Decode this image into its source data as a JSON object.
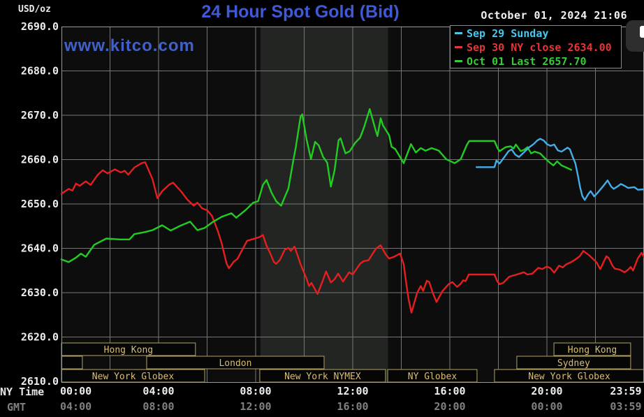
{
  "header": {
    "title": "24 Hour Spot Gold (Bid)",
    "datetime": "October 01, 2024 21:06",
    "unit_label": "USD/oz",
    "watermark": "www.kitco.com"
  },
  "legend": {
    "items": [
      {
        "label": "Sep 29 Sunday",
        "color": "#45c8f0"
      },
      {
        "label": "Sep 30 NY close 2634.00",
        "color": "#e53535"
      },
      {
        "label": "Oct 01 Last 2657.70",
        "color": "#35cc35"
      }
    ]
  },
  "axes": {
    "ny_time_label": "NY Time",
    "gmt_label": "GMT",
    "ny_ticks": [
      "00:00",
      "04:00",
      "08:00",
      "12:00",
      "16:00",
      "20:00",
      "23:59"
    ],
    "gmt_ticks": [
      "04:00",
      "08:00",
      "12:00",
      "16:00",
      "20:00",
      "00:00",
      "03:59"
    ]
  },
  "sessions": [
    {
      "row": 0,
      "label": "Hong Kong",
      "start_h": 0,
      "end_h": 5.52
    },
    {
      "row": 0,
      "label": "Hong Kong",
      "start_h": 20.29,
      "end_h": 23.45
    },
    {
      "row": 1,
      "label": "",
      "start_h": 0,
      "end_h": 0.86
    },
    {
      "row": 1,
      "label": "London",
      "start_h": 3.51,
      "end_h": 10.82
    },
    {
      "row": 1,
      "label": "Sydney",
      "start_h": 18.76,
      "end_h": 23.45
    },
    {
      "row": 2,
      "label": "New York Globex",
      "start_h": 0,
      "end_h": 5.9
    },
    {
      "row": 2,
      "label": "New York NYMEX",
      "start_h": 8.17,
      "end_h": 13.35
    },
    {
      "row": 2,
      "label": "NY Globex",
      "start_h": 13.44,
      "end_h": 17.12
    },
    {
      "row": 2,
      "label": "New York Globex",
      "start_h": 17.84,
      "end_h": 24
    }
  ],
  "colors": {
    "background": "#000000",
    "plot_bg": "#0d0d0d",
    "nymex_band": "#222522",
    "grid": "#767676",
    "border": "#9a9a9a",
    "session_border": "#b3a25f",
    "session_fill": "#060606",
    "session_text": "#d8bd72",
    "axis_text": "#ececec",
    "gmt_text": "#808080"
  },
  "chart_data": {
    "type": "line",
    "title": "24 Hour Spot Gold (Bid)",
    "xlabel": "NY Time (hours)",
    "ylabel": "USD/oz",
    "x_range": [
      0,
      24
    ],
    "y_range": [
      2610,
      2690
    ],
    "y_tick_step": 10,
    "x_tick_step_hours": 4,
    "grid": true,
    "nymex_band_hours": [
      8.2,
      13.45
    ],
    "legend_position": "top-right",
    "series": [
      {
        "name": "Sep 30 NY close 2634.00",
        "color": "#e51f1f",
        "points": [
          [
            0,
            2652.3
          ],
          [
            0.3,
            2653.4
          ],
          [
            0.45,
            2653.0
          ],
          [
            0.6,
            2654.6
          ],
          [
            0.75,
            2654.1
          ],
          [
            1.0,
            2655.1
          ],
          [
            1.2,
            2654.3
          ],
          [
            1.5,
            2656.6
          ],
          [
            1.7,
            2657.6
          ],
          [
            1.9,
            2656.9
          ],
          [
            2.2,
            2657.8
          ],
          [
            2.45,
            2657.1
          ],
          [
            2.6,
            2657.5
          ],
          [
            2.75,
            2656.6
          ],
          [
            3.0,
            2658.2
          ],
          [
            3.3,
            2659.2
          ],
          [
            3.45,
            2659.4
          ],
          [
            3.6,
            2657.5
          ],
          [
            3.75,
            2655.6
          ],
          [
            3.95,
            2651.3
          ],
          [
            4.15,
            2652.9
          ],
          [
            4.45,
            2654.4
          ],
          [
            4.6,
            2654.8
          ],
          [
            4.9,
            2653.0
          ],
          [
            5.2,
            2650.9
          ],
          [
            5.45,
            2649.6
          ],
          [
            5.6,
            2650.3
          ],
          [
            5.8,
            2649.0
          ],
          [
            6.0,
            2648.6
          ],
          [
            6.2,
            2647.3
          ],
          [
            6.45,
            2643.8
          ],
          [
            6.6,
            2641.1
          ],
          [
            6.8,
            2636.6
          ],
          [
            6.9,
            2635.5
          ],
          [
            7.1,
            2637.0
          ],
          [
            7.25,
            2637.6
          ],
          [
            7.5,
            2640.2
          ],
          [
            7.65,
            2641.7
          ],
          [
            7.9,
            2642.1
          ],
          [
            8.15,
            2642.5
          ],
          [
            8.3,
            2643.0
          ],
          [
            8.45,
            2640.6
          ],
          [
            8.6,
            2638.9
          ],
          [
            8.75,
            2636.9
          ],
          [
            8.85,
            2636.5
          ],
          [
            9.0,
            2637.4
          ],
          [
            9.2,
            2639.7
          ],
          [
            9.35,
            2640.1
          ],
          [
            9.45,
            2639.4
          ],
          [
            9.6,
            2640.4
          ],
          [
            9.75,
            2638.1
          ],
          [
            9.85,
            2636.4
          ],
          [
            9.95,
            2635.1
          ],
          [
            10.1,
            2633.1
          ],
          [
            10.2,
            2631.5
          ],
          [
            10.3,
            2632.2
          ],
          [
            10.45,
            2630.7
          ],
          [
            10.55,
            2629.7
          ],
          [
            10.75,
            2632.5
          ],
          [
            10.9,
            2634.8
          ],
          [
            11.1,
            2632.3
          ],
          [
            11.25,
            2633.0
          ],
          [
            11.4,
            2634.3
          ],
          [
            11.6,
            2632.5
          ],
          [
            11.85,
            2634.6
          ],
          [
            12.0,
            2634.1
          ],
          [
            12.3,
            2636.5
          ],
          [
            12.45,
            2637.1
          ],
          [
            12.65,
            2637.3
          ],
          [
            12.95,
            2639.9
          ],
          [
            13.15,
            2640.7
          ],
          [
            13.35,
            2638.7
          ],
          [
            13.5,
            2637.7
          ],
          [
            13.7,
            2638.1
          ],
          [
            13.95,
            2638.8
          ],
          [
            14.1,
            2636.4
          ],
          [
            14.2,
            2632.2
          ],
          [
            14.3,
            2628.6
          ],
          [
            14.42,
            2625.5
          ],
          [
            14.65,
            2629.9
          ],
          [
            14.8,
            2631.5
          ],
          [
            14.9,
            2630.4
          ],
          [
            15.05,
            2632.7
          ],
          [
            15.15,
            2632.4
          ],
          [
            15.3,
            2629.9
          ],
          [
            15.45,
            2627.9
          ],
          [
            15.7,
            2630.4
          ],
          [
            15.95,
            2631.9
          ],
          [
            16.1,
            2632.4
          ],
          [
            16.3,
            2631.3
          ],
          [
            16.45,
            2632.0
          ],
          [
            16.55,
            2632.8
          ],
          [
            16.65,
            2632.6
          ],
          [
            16.78,
            2634.1
          ],
          [
            17.84,
            2634.1
          ],
          [
            17.95,
            2632.6
          ],
          [
            18.05,
            2631.9
          ],
          [
            18.2,
            2632.2
          ],
          [
            18.45,
            2633.6
          ],
          [
            18.7,
            2634.0
          ],
          [
            19.05,
            2634.6
          ],
          [
            19.2,
            2634.1
          ],
          [
            19.4,
            2634.3
          ],
          [
            19.65,
            2635.6
          ],
          [
            19.8,
            2635.3
          ],
          [
            20.0,
            2635.9
          ],
          [
            20.15,
            2635.5
          ],
          [
            20.3,
            2634.5
          ],
          [
            20.5,
            2636.1
          ],
          [
            20.65,
            2635.7
          ],
          [
            20.8,
            2636.4
          ],
          [
            21.0,
            2636.9
          ],
          [
            21.15,
            2637.4
          ],
          [
            21.35,
            2638.2
          ],
          [
            21.5,
            2639.4
          ],
          [
            21.75,
            2638.4
          ],
          [
            21.9,
            2637.6
          ],
          [
            22.05,
            2636.8
          ],
          [
            22.2,
            2635.3
          ],
          [
            22.45,
            2638.2
          ],
          [
            22.55,
            2637.8
          ],
          [
            22.7,
            2636.1
          ],
          [
            22.8,
            2635.4
          ],
          [
            23.0,
            2635.2
          ],
          [
            23.2,
            2634.6
          ],
          [
            23.35,
            2635.2
          ],
          [
            23.45,
            2635.8
          ],
          [
            23.55,
            2635.0
          ],
          [
            23.75,
            2637.8
          ],
          [
            23.9,
            2639.0
          ],
          [
            24.0,
            2638.0
          ]
        ]
      },
      {
        "name": "Oct 01 Last 2657.70",
        "color": "#22cc22",
        "points": [
          [
            0,
            2637.5
          ],
          [
            0.3,
            2636.9
          ],
          [
            0.6,
            2637.9
          ],
          [
            0.8,
            2638.8
          ],
          [
            1.0,
            2638.1
          ],
          [
            1.35,
            2640.8
          ],
          [
            1.85,
            2642.2
          ],
          [
            2.4,
            2642.0
          ],
          [
            2.8,
            2642.0
          ],
          [
            3.0,
            2643.2
          ],
          [
            3.4,
            2643.6
          ],
          [
            3.75,
            2644.1
          ],
          [
            4.15,
            2645.2
          ],
          [
            4.5,
            2644.0
          ],
          [
            4.9,
            2645.1
          ],
          [
            5.3,
            2646.0
          ],
          [
            5.6,
            2644.1
          ],
          [
            5.9,
            2644.6
          ],
          [
            6.25,
            2646.0
          ],
          [
            6.6,
            2647.1
          ],
          [
            7.0,
            2647.9
          ],
          [
            7.2,
            2646.9
          ],
          [
            7.6,
            2648.7
          ],
          [
            7.9,
            2650.3
          ],
          [
            8.1,
            2650.6
          ],
          [
            8.3,
            2654.3
          ],
          [
            8.45,
            2655.4
          ],
          [
            8.65,
            2652.6
          ],
          [
            8.85,
            2650.6
          ],
          [
            9.05,
            2649.6
          ],
          [
            9.35,
            2653.5
          ],
          [
            9.55,
            2659.8
          ],
          [
            9.65,
            2662.6
          ],
          [
            9.85,
            2669.7
          ],
          [
            9.92,
            2670.2
          ],
          [
            10.1,
            2664.5
          ],
          [
            10.28,
            2660.1
          ],
          [
            10.45,
            2664.0
          ],
          [
            10.6,
            2663.2
          ],
          [
            10.78,
            2660.6
          ],
          [
            10.95,
            2659.3
          ],
          [
            11.1,
            2653.9
          ],
          [
            11.25,
            2657.5
          ],
          [
            11.42,
            2664.4
          ],
          [
            11.5,
            2664.8
          ],
          [
            11.7,
            2661.4
          ],
          [
            11.88,
            2661.9
          ],
          [
            12.1,
            2663.8
          ],
          [
            12.3,
            2664.9
          ],
          [
            12.45,
            2667.0
          ],
          [
            12.7,
            2671.4
          ],
          [
            12.95,
            2666.5
          ],
          [
            13.02,
            2665.3
          ],
          [
            13.15,
            2669.3
          ],
          [
            13.25,
            2667.7
          ],
          [
            13.5,
            2665.5
          ],
          [
            13.6,
            2662.9
          ],
          [
            13.75,
            2662.4
          ],
          [
            14.1,
            2659.2
          ],
          [
            14.4,
            2663.5
          ],
          [
            14.6,
            2661.6
          ],
          [
            14.8,
            2662.6
          ],
          [
            15.0,
            2662.0
          ],
          [
            15.25,
            2662.6
          ],
          [
            15.55,
            2662.0
          ],
          [
            15.85,
            2660.1
          ],
          [
            16.2,
            2659.2
          ],
          [
            16.45,
            2660.1
          ],
          [
            16.7,
            2663.3
          ],
          [
            16.8,
            2664.2
          ],
          [
            17.84,
            2664.2
          ],
          [
            17.97,
            2662.5
          ],
          [
            18.05,
            2661.9
          ],
          [
            18.3,
            2662.8
          ],
          [
            18.5,
            2663.0
          ],
          [
            18.63,
            2662.5
          ],
          [
            18.72,
            2663.4
          ],
          [
            18.92,
            2661.9
          ],
          [
            19.06,
            2662.2
          ],
          [
            19.2,
            2662.8
          ],
          [
            19.35,
            2661.4
          ],
          [
            19.5,
            2661.8
          ],
          [
            19.72,
            2661.4
          ],
          [
            19.92,
            2660.3
          ],
          [
            20.12,
            2659.3
          ],
          [
            20.27,
            2658.7
          ],
          [
            20.42,
            2659.6
          ],
          [
            20.6,
            2658.7
          ],
          [
            20.8,
            2658.2
          ],
          [
            21.0,
            2657.7
          ]
        ]
      },
      {
        "name": "Sep 29 Sunday",
        "color": "#45aee8",
        "points": [
          [
            17.1,
            2658.3
          ],
          [
            17.84,
            2658.3
          ],
          [
            17.92,
            2659.8
          ],
          [
            18.05,
            2659.1
          ],
          [
            18.25,
            2660.6
          ],
          [
            18.42,
            2661.9
          ],
          [
            18.55,
            2662.3
          ],
          [
            18.7,
            2661.1
          ],
          [
            18.85,
            2660.6
          ],
          [
            19.05,
            2661.6
          ],
          [
            19.25,
            2662.7
          ],
          [
            19.45,
            2663.5
          ],
          [
            19.6,
            2664.3
          ],
          [
            19.72,
            2664.7
          ],
          [
            19.87,
            2664.3
          ],
          [
            20.0,
            2663.5
          ],
          [
            20.15,
            2663.1
          ],
          [
            20.3,
            2663.4
          ],
          [
            20.45,
            2662.1
          ],
          [
            20.6,
            2661.8
          ],
          [
            20.85,
            2662.7
          ],
          [
            20.95,
            2662.3
          ],
          [
            21.07,
            2660.5
          ],
          [
            21.17,
            2659.2
          ],
          [
            21.28,
            2656.3
          ],
          [
            21.37,
            2653.7
          ],
          [
            21.46,
            2651.8
          ],
          [
            21.56,
            2650.9
          ],
          [
            21.7,
            2652.2
          ],
          [
            21.8,
            2652.9
          ],
          [
            21.95,
            2651.7
          ],
          [
            22.1,
            2652.6
          ],
          [
            22.3,
            2653.9
          ],
          [
            22.5,
            2655.3
          ],
          [
            22.65,
            2653.9
          ],
          [
            22.75,
            2653.4
          ],
          [
            22.9,
            2653.9
          ],
          [
            23.05,
            2654.5
          ],
          [
            23.2,
            2654.1
          ],
          [
            23.35,
            2653.6
          ],
          [
            23.6,
            2653.8
          ],
          [
            23.75,
            2653.2
          ],
          [
            24.0,
            2653.3
          ]
        ]
      }
    ]
  }
}
